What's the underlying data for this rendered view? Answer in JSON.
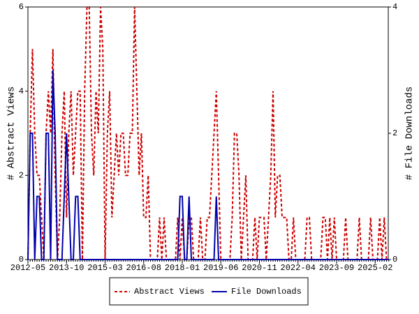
{
  "chart_data": {
    "type": "line",
    "y_label": "# Abstract Views",
    "y2_label": "# File Downloads",
    "x": [
      "2012-05",
      "2012-06",
      "2012-07",
      "2012-08",
      "2012-09",
      "2012-10",
      "2012-11",
      "2012-12",
      "2013-01",
      "2013-02",
      "2013-03",
      "2013-04",
      "2013-05",
      "2013-06",
      "2013-07",
      "2013-08",
      "2013-09",
      "2013-10",
      "2013-11",
      "2013-12",
      "2014-01",
      "2014-02",
      "2014-03",
      "2014-04",
      "2014-05",
      "2014-06",
      "2014-07",
      "2014-08",
      "2014-09",
      "2014-10",
      "2014-11",
      "2014-12",
      "2015-01",
      "2015-02",
      "2015-03",
      "2015-04",
      "2015-05",
      "2015-06",
      "2015-07",
      "2015-08",
      "2015-09",
      "2015-10",
      "2015-11",
      "2015-12",
      "2016-01",
      "2016-02",
      "2016-03",
      "2016-04",
      "2016-05",
      "2016-06",
      "2016-07",
      "2016-08",
      "2016-09",
      "2016-10",
      "2016-11",
      "2016-12",
      "2017-01",
      "2017-02",
      "2017-03",
      "2017-04",
      "2017-05",
      "2017-06",
      "2017-07",
      "2017-08",
      "2017-09",
      "2017-10",
      "2017-11",
      "2017-12",
      "2018-01",
      "2018-02",
      "2018-03",
      "2018-04",
      "2018-05",
      "2018-06",
      "2018-07",
      "2018-08",
      "2018-09",
      "2018-10",
      "2018-11",
      "2018-12",
      "2019-01",
      "2019-02",
      "2019-03",
      "2019-04",
      "2019-05",
      "2019-06",
      "2019-07",
      "2019-08",
      "2019-09",
      "2019-10",
      "2019-11",
      "2019-12",
      "2020-01",
      "2020-02",
      "2020-03",
      "2020-04",
      "2020-05",
      "2020-06",
      "2020-07",
      "2020-08",
      "2020-09",
      "2020-10",
      "2020-11",
      "2020-12",
      "2021-01",
      "2021-02",
      "2021-03",
      "2021-04",
      "2021-05",
      "2021-06",
      "2021-07",
      "2021-08",
      "2021-09",
      "2021-10",
      "2021-11",
      "2021-12",
      "2022-01",
      "2022-02",
      "2022-03",
      "2022-04",
      "2022-05",
      "2022-06",
      "2022-07",
      "2022-08",
      "2022-09",
      "2022-10",
      "2022-11",
      "2022-12",
      "2023-01",
      "2023-02",
      "2023-03",
      "2023-04",
      "2023-05",
      "2023-06",
      "2023-07",
      "2023-08",
      "2023-09",
      "2023-10",
      "2023-11",
      "2023-12",
      "2024-01",
      "2024-02",
      "2024-03",
      "2024-04",
      "2024-05",
      "2024-06",
      "2024-07",
      "2024-08",
      "2024-09",
      "2024-10",
      "2024-11",
      "2024-12",
      "2025-01",
      "2025-02",
      "2025-03",
      "2025-04",
      "2025-05",
      "2025-06",
      "2025-07",
      "2025-08"
    ],
    "xticks": [
      "2012-05",
      "2013-10",
      "2015-03",
      "2016-08",
      "2018-01",
      "2019-06",
      "2020-11",
      "2022-04",
      "2023-09",
      "2025-02"
    ],
    "ylim": [
      0,
      6
    ],
    "yticks": [
      0,
      2,
      4,
      6
    ],
    "y2lim": [
      0,
      4
    ],
    "y2ticks": [
      0,
      2,
      4
    ],
    "legend": "bottom",
    "series": [
      {
        "name": "Abstract Views",
        "color": "#cc0000",
        "style": "dashed",
        "values": [
          0,
          3,
          5,
          3,
          2,
          2,
          1,
          0,
          3,
          4,
          3,
          5,
          2,
          0,
          1,
          3,
          4,
          1,
          3,
          4,
          2,
          3,
          4,
          4,
          0,
          4,
          6,
          6,
          3,
          2,
          4,
          3,
          6,
          5,
          0,
          3,
          4,
          1,
          2,
          3,
          2,
          3,
          3,
          2,
          2,
          3,
          3,
          6,
          4,
          2,
          3,
          1,
          1,
          2,
          0,
          0,
          0,
          0,
          1,
          0,
          1,
          0,
          0,
          0,
          0,
          0,
          1,
          0,
          1,
          0,
          0,
          1,
          1,
          0,
          0,
          0,
          1,
          0,
          0,
          1,
          1,
          2,
          3,
          4,
          2,
          0,
          0,
          0,
          0,
          0,
          1,
          3,
          3,
          2,
          0,
          1,
          2,
          0,
          0,
          0,
          1,
          0,
          1,
          1,
          1,
          0,
          1,
          2,
          4,
          1,
          2,
          2,
          1,
          1,
          1,
          0,
          0,
          1,
          0,
          0,
          0,
          0,
          0,
          1,
          1,
          0,
          0,
          0,
          0,
          0,
          1,
          1,
          0,
          1,
          0,
          1,
          0,
          0,
          0,
          0,
          1,
          0,
          0,
          0,
          0,
          0,
          1,
          0,
          0,
          0,
          0,
          1,
          0,
          0,
          0,
          1,
          0,
          1,
          0,
          0
        ]
      },
      {
        "name": "File Downloads",
        "color": "#0000aa",
        "style": "solid",
        "axis": "y2",
        "values": [
          0,
          2,
          2,
          0,
          1,
          1,
          0,
          0,
          2,
          2,
          0,
          3,
          2,
          0,
          0,
          0,
          1,
          2,
          1,
          0,
          0,
          1,
          1,
          0,
          0,
          0,
          0,
          0,
          0,
          0,
          0,
          0,
          0,
          0,
          0,
          0,
          0,
          0,
          0,
          0,
          0,
          0,
          0,
          0,
          0,
          0,
          0,
          0,
          0,
          0,
          0,
          0,
          0,
          0,
          0,
          0,
          0,
          0,
          0,
          0,
          0,
          0,
          0,
          0,
          0,
          0,
          0,
          1,
          1,
          0,
          0,
          1,
          0,
          0,
          0,
          0,
          0,
          0,
          0,
          0,
          0,
          0,
          0,
          1,
          0,
          0,
          0,
          0,
          0,
          0,
          0,
          0,
          0,
          0,
          0,
          0,
          0,
          0,
          0,
          0,
          0,
          0,
          0,
          0,
          0,
          0,
          0,
          0,
          0,
          0,
          0,
          0,
          0,
          0,
          0,
          0,
          0,
          0,
          0,
          0,
          0,
          0,
          0,
          0,
          0,
          0,
          0,
          0,
          0,
          0,
          0,
          0,
          0,
          0,
          0,
          0,
          0,
          0,
          0,
          0,
          0,
          0,
          0,
          0,
          0,
          0,
          0,
          0,
          0,
          0,
          0,
          0,
          0,
          0,
          0,
          0,
          0,
          0,
          0,
          0
        ]
      }
    ]
  }
}
